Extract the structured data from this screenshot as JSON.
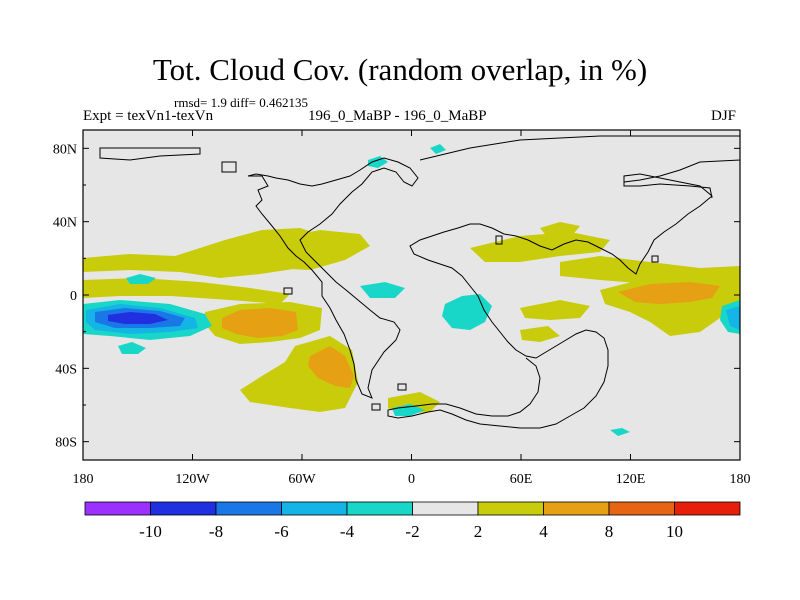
{
  "title": "Tot. Cloud Cov. (random overlap, in %)",
  "stats_line": "rmsd= 1.9 diff= 0.462135",
  "experiment_label": "Expt = texVn1-texVn",
  "cases_label": "196_0_MaBP - 196_0_MaBP",
  "season": "DJF",
  "chart_data": {
    "type": "heatmap",
    "title": "Tot. Cloud Cov. (random overlap, in %)",
    "subtitle": "rmsd= 1.9 diff= 0.462135",
    "xlabel": "",
    "ylabel": "",
    "xlim": [
      -180,
      180
    ],
    "ylim": [
      -90,
      90
    ],
    "x_ticks": [
      {
        "value": -180,
        "label": "180"
      },
      {
        "value": -120,
        "label": "120W"
      },
      {
        "value": -60,
        "label": "60W"
      },
      {
        "value": 0,
        "label": "0"
      },
      {
        "value": 60,
        "label": "60E"
      },
      {
        "value": 120,
        "label": "120E"
      },
      {
        "value": 180,
        "label": "180"
      }
    ],
    "y_ticks": [
      {
        "value": 80,
        "label": "80N"
      },
      {
        "value": 40,
        "label": "40N"
      },
      {
        "value": 0,
        "label": "0"
      },
      {
        "value": -40,
        "label": "40S"
      },
      {
        "value": -80,
        "label": "80S"
      }
    ],
    "colorbar": {
      "levels": [
        -12,
        -10,
        -8,
        -6,
        -4,
        -2,
        2,
        4,
        8,
        10,
        12
      ],
      "labels": [
        "-10",
        "-8",
        "-6",
        "-4",
        "-2",
        "2",
        "4",
        "8",
        "10"
      ],
      "colors": [
        "#9b30ff",
        "#2030e0",
        "#1a78e6",
        "#14b4e6",
        "#19d7c8",
        "#e6e6e6",
        "#c8cc0a",
        "#e6a014",
        "#e66414",
        "#e61e0a"
      ]
    },
    "background_color": "#e6e6e6",
    "features": [
      {
        "name": "South Pacific minimum",
        "lon": -146,
        "lat": -13,
        "value": -9
      },
      {
        "name": "SE Pacific maximum",
        "lon": -73,
        "lat": -17,
        "value": 5
      },
      {
        "name": "South Atlantic maximum",
        "lon": -34,
        "lat": -42,
        "value": 5
      },
      {
        "name": "Indian Ocean maximum",
        "lon": 102,
        "lat": 2,
        "value": 5
      },
      {
        "name": "Equatorial Pacific minimum (east)",
        "lon": 175,
        "lat": -13,
        "value": -5
      },
      {
        "name": "Central African minimum",
        "lon": 25,
        "lat": -10,
        "value": -3
      }
    ]
  }
}
